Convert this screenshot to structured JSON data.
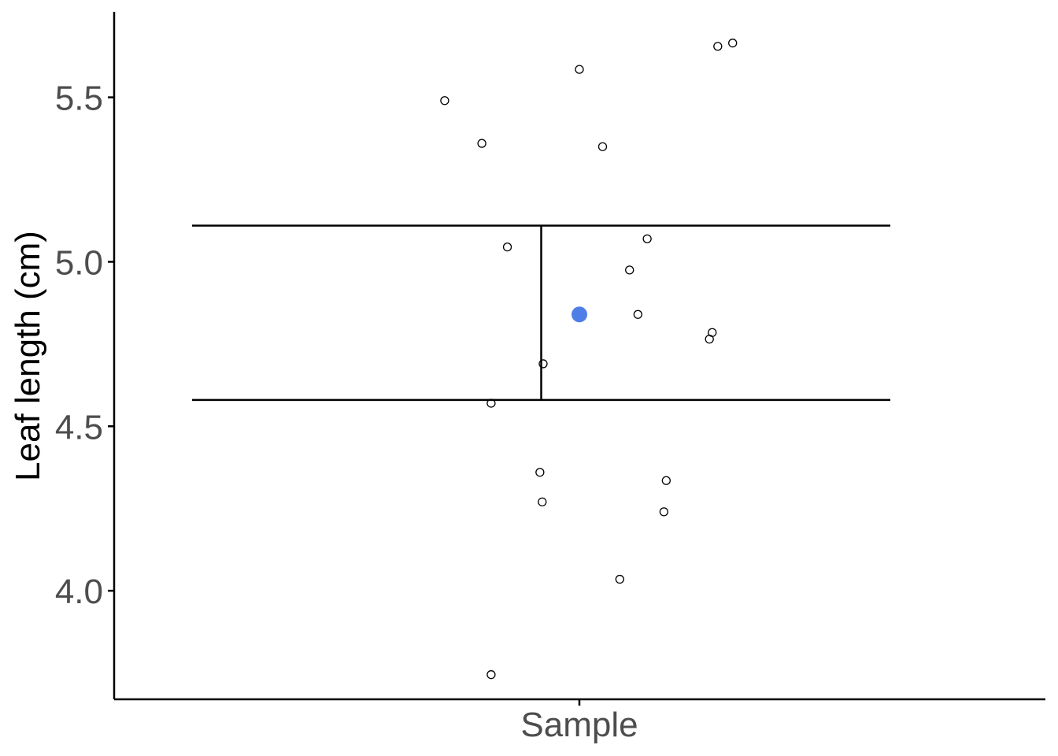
{
  "chart_data": {
    "type": "scatter",
    "title": "",
    "xlabel": "",
    "ylabel": "Leaf length (cm)",
    "categories": [
      "Sample"
    ],
    "ylim": [
      3.67,
      5.76
    ],
    "yticks": [
      4.0,
      4.5,
      5.0,
      5.5
    ],
    "ytick_labels": [
      "4.0",
      "4.5",
      "5.0",
      "5.5"
    ],
    "grid": false,
    "legend": "none",
    "points": [
      {
        "jitter": -0.29,
        "y": 5.49
      },
      {
        "jitter": -0.21,
        "y": 5.36
      },
      {
        "jitter": -0.155,
        "y": 5.045
      },
      {
        "jitter": -0.19,
        "y": 4.57
      },
      {
        "jitter": -0.19,
        "y": 3.745
      },
      {
        "jitter": -0.085,
        "y": 4.36
      },
      {
        "jitter": -0.08,
        "y": 4.27
      },
      {
        "jitter": -0.078,
        "y": 4.69
      },
      {
        "jitter": 0.0,
        "y": 5.585
      },
      {
        "jitter": 0.05,
        "y": 5.35
      },
      {
        "jitter": 0.087,
        "y": 4.035
      },
      {
        "jitter": 0.108,
        "y": 4.975
      },
      {
        "jitter": 0.126,
        "y": 4.84
      },
      {
        "jitter": 0.146,
        "y": 5.07
      },
      {
        "jitter": 0.182,
        "y": 4.24
      },
      {
        "jitter": 0.187,
        "y": 4.335
      },
      {
        "jitter": 0.28,
        "y": 4.765
      },
      {
        "jitter": 0.286,
        "y": 4.785
      },
      {
        "jitter": 0.298,
        "y": 5.655
      },
      {
        "jitter": 0.33,
        "y": 5.665
      }
    ],
    "mean": {
      "y": 4.84,
      "color": "#4f7fe6"
    },
    "interval": {
      "lower": 4.58,
      "upper": 5.11
    }
  }
}
